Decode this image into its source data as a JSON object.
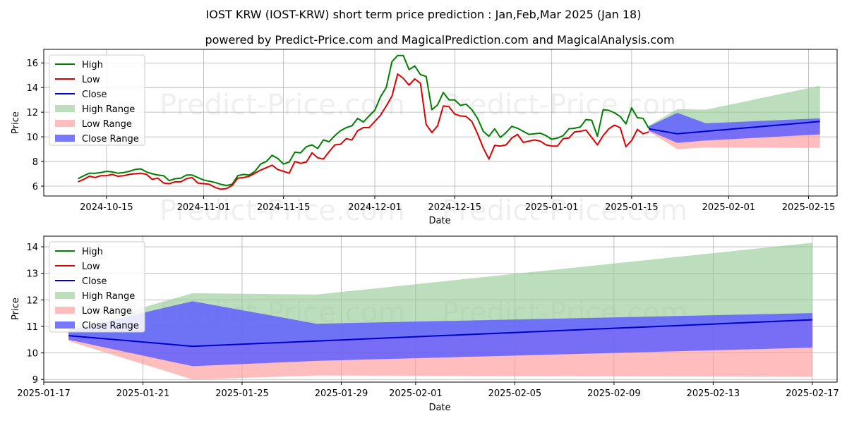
{
  "title": "IOST KRW (IOST-KRW) short term price prediction : Jan,Feb,Mar 2025 (Jan 18)",
  "subtitle": "powered by Predict-Price.com and MagicalPrediction.com and MagicalAnalysis.com",
  "watermark": "Predict-Price.com",
  "colors": {
    "high": "#008000",
    "low": "#dd0000",
    "close": "#0000cc",
    "high_range": "#90c890",
    "low_range": "#ff9a9a",
    "close_range": "#6060ff"
  },
  "chart_data": [
    {
      "type": "line",
      "name": "top",
      "xlabel": "Date",
      "ylabel": "Price",
      "xlim": [
        "2024-10-04",
        "2025-02-20"
      ],
      "ylim": [
        5.2,
        17.1
      ],
      "yticks": [
        6,
        8,
        10,
        12,
        14,
        16
      ],
      "xticks": [
        {
          "date": "2024-10-15",
          "label": "2024-10-15"
        },
        {
          "date": "2024-11-01",
          "label": "2024-11-01"
        },
        {
          "date": "2024-11-15",
          "label": "2024-11-15"
        },
        {
          "date": "2024-12-01",
          "label": "2024-12-01"
        },
        {
          "date": "2024-12-15",
          "label": "2024-12-15"
        },
        {
          "date": "2025-01-01",
          "label": "2025-01-01"
        },
        {
          "date": "2025-01-15",
          "label": "2025-01-15"
        },
        {
          "date": "2025-02-01",
          "label": "2025-02-01"
        },
        {
          "date": "2025-02-15",
          "label": "2025-02-15"
        }
      ],
      "legend": [
        "High",
        "Low",
        "Close",
        "High Range",
        "Low Range",
        "Close Range"
      ],
      "legend_position": "upper left",
      "history_start": "2024-10-10",
      "high": [
        6.6,
        6.85,
        7.05,
        7.05,
        7.1,
        7.2,
        7.15,
        7.05,
        7.1,
        7.2,
        7.35,
        7.4,
        7.15,
        7.0,
        6.9,
        6.85,
        6.45,
        6.6,
        6.65,
        6.9,
        6.9,
        6.7,
        6.5,
        6.4,
        6.3,
        6.15,
        6.05,
        6.15,
        6.85,
        6.95,
        6.9,
        7.2,
        7.8,
        8.0,
        8.5,
        8.25,
        7.8,
        7.95,
        8.75,
        8.7,
        9.2,
        9.35,
        9.05,
        9.75,
        9.6,
        10.1,
        10.5,
        10.75,
        10.9,
        11.5,
        11.2,
        11.7,
        12.15,
        13.25,
        14.0,
        16.1,
        16.6,
        16.6,
        15.45,
        15.75,
        15.05,
        14.9,
        12.2,
        12.6,
        13.6,
        13.0,
        13.0,
        12.55,
        12.65,
        12.2,
        11.5,
        10.45,
        10.05,
        10.65,
        9.95,
        10.35,
        10.85,
        10.7,
        10.45,
        10.2,
        10.25,
        10.3,
        10.1,
        9.8,
        9.9,
        10.1,
        10.65,
        10.7,
        10.8,
        11.4,
        11.35,
        10.05,
        12.2,
        12.15,
        11.95,
        11.65,
        11.05,
        12.35,
        11.55,
        11.5,
        10.7
      ],
      "low": [
        6.35,
        6.55,
        6.8,
        6.7,
        6.85,
        6.85,
        6.95,
        6.8,
        6.85,
        6.95,
        7.0,
        7.05,
        6.95,
        6.55,
        6.65,
        6.25,
        6.2,
        6.35,
        6.35,
        6.6,
        6.7,
        6.25,
        6.2,
        6.15,
        5.9,
        5.75,
        5.8,
        6.05,
        6.65,
        6.7,
        6.8,
        7.05,
        7.3,
        7.5,
        7.7,
        7.35,
        7.2,
        7.05,
        8.0,
        7.85,
        7.95,
        8.7,
        8.3,
        8.2,
        8.8,
        9.35,
        9.4,
        9.85,
        9.75,
        10.5,
        10.75,
        10.75,
        11.25,
        11.75,
        12.5,
        13.3,
        15.1,
        14.75,
        14.2,
        14.7,
        14.35,
        11.0,
        10.35,
        10.9,
        12.5,
        12.45,
        11.85,
        11.7,
        11.65,
        11.25,
        10.25,
        9.1,
        8.2,
        9.3,
        9.25,
        9.35,
        9.9,
        10.2,
        9.55,
        9.65,
        9.75,
        9.65,
        9.35,
        9.25,
        9.25,
        9.85,
        9.9,
        10.4,
        10.45,
        10.55,
        9.95,
        9.35,
        10.1,
        10.65,
        10.95,
        10.75,
        9.2,
        9.7,
        10.6,
        10.25,
        10.4
      ],
      "forecast": [
        {
          "date": "2025-01-18",
          "high": 10.75,
          "low": 10.5,
          "close": 10.65,
          "high_hi": 10.9,
          "low_lo": 10.45,
          "close_hi": 10.85,
          "close_lo": 10.5
        },
        {
          "date": "2025-01-23",
          "high": 12.25,
          "low": 9.0,
          "close": 10.25,
          "high_hi": 12.25,
          "low_lo": 9.0,
          "close_hi": 11.95,
          "close_lo": 9.5
        },
        {
          "date": "2025-01-28",
          "high": 12.2,
          "low": 9.15,
          "close": 10.45,
          "high_hi": 12.2,
          "low_lo": 9.15,
          "close_hi": 11.1,
          "close_lo": 9.7
        },
        {
          "date": "2025-02-17",
          "high": 14.15,
          "low": 9.1,
          "close": 11.25,
          "high_hi": 14.15,
          "low_lo": 9.1,
          "close_hi": 11.5,
          "close_lo": 10.2
        }
      ]
    },
    {
      "type": "line",
      "name": "bottom",
      "xlabel": "Date",
      "ylabel": "Price",
      "xlim": [
        "2025-01-17",
        "2025-02-18"
      ],
      "ylim": [
        8.9,
        14.4
      ],
      "yticks": [
        9,
        10,
        11,
        12,
        13,
        14
      ],
      "xticks": [
        {
          "date": "2025-01-17",
          "label": "2025-01-17"
        },
        {
          "date": "2025-01-21",
          "label": "2025-01-21"
        },
        {
          "date": "2025-01-25",
          "label": "2025-01-25"
        },
        {
          "date": "2025-01-29",
          "label": "2025-01-29"
        },
        {
          "date": "2025-02-01",
          "label": "2025-02-01"
        },
        {
          "date": "2025-02-05",
          "label": "2025-02-05"
        },
        {
          "date": "2025-02-09",
          "label": "2025-02-09"
        },
        {
          "date": "2025-02-13",
          "label": "2025-02-13"
        },
        {
          "date": "2025-02-17",
          "label": "2025-02-17"
        }
      ],
      "legend": [
        "High",
        "Low",
        "Close",
        "High Range",
        "Low Range",
        "Close Range"
      ],
      "legend_position": "upper left",
      "forecast": [
        {
          "date": "2025-01-18",
          "high_hi": 10.9,
          "low_lo": 10.45,
          "close": 10.65,
          "close_hi": 10.85,
          "close_lo": 10.5
        },
        {
          "date": "2025-01-23",
          "high_hi": 12.25,
          "low_lo": 9.0,
          "close": 10.25,
          "close_hi": 11.95,
          "close_lo": 9.5
        },
        {
          "date": "2025-01-28",
          "high_hi": 12.2,
          "low_lo": 9.15,
          "close": 10.45,
          "close_hi": 11.1,
          "close_lo": 9.7
        },
        {
          "date": "2025-02-17",
          "high_hi": 14.15,
          "low_lo": 9.1,
          "close": 11.25,
          "close_hi": 11.5,
          "close_lo": 10.2
        }
      ]
    }
  ]
}
